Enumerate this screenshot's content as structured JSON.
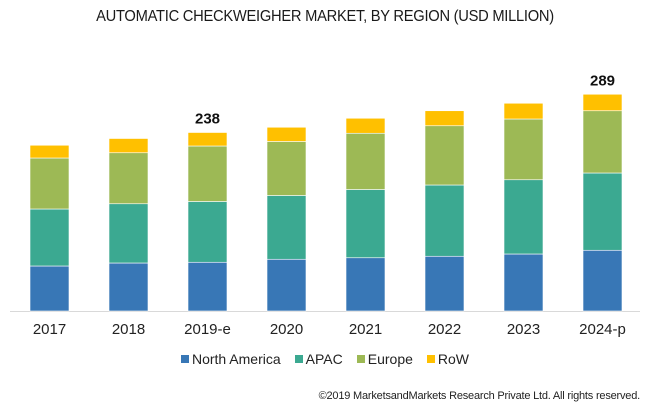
{
  "chart_data": {
    "type": "bar",
    "stacked": true,
    "title": "AUTOMATIC CHECKWEIGHER MARKET, BY REGION (USD MILLION)",
    "xlabel": "",
    "ylabel": "",
    "ylim": [
      0,
      300
    ],
    "grid": false,
    "legend_position": "bottom",
    "categories": [
      "2017",
      "2018",
      "2019-e",
      "2020",
      "2021",
      "2022",
      "2023",
      "2024-p"
    ],
    "series": [
      {
        "name": "North America",
        "color": "#3877B6",
        "values": [
          60,
          64,
          65,
          69,
          71,
          73,
          76,
          81
        ]
      },
      {
        "name": "APAC",
        "color": "#3BA991",
        "values": [
          76,
          79,
          81,
          85,
          91,
          95,
          99,
          103
        ]
      },
      {
        "name": "Europe",
        "color": "#9DB955",
        "values": [
          68,
          68,
          74,
          72,
          75,
          79,
          81,
          83
        ]
      },
      {
        "name": "RoW",
        "color": "#FFC000",
        "values": [
          17,
          19,
          18,
          19,
          20,
          20,
          21,
          22
        ]
      }
    ],
    "annotations": [
      {
        "category": "2019-e",
        "text": "238"
      },
      {
        "category": "2024-p",
        "text": "289"
      }
    ]
  },
  "footer": {
    "copyright": "©2019 MarketsandMarkets Research Private Ltd. All rights reserved."
  }
}
